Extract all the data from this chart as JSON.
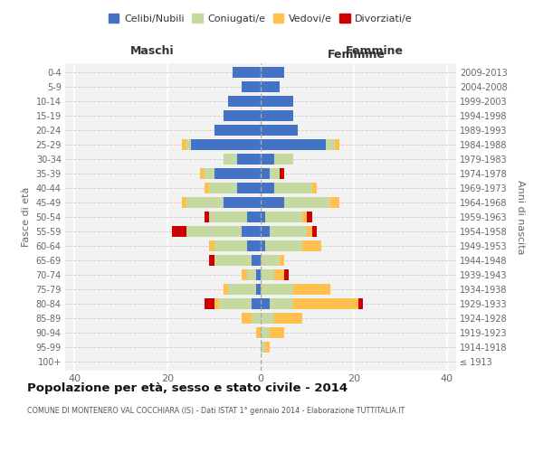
{
  "age_groups": [
    "100+",
    "95-99",
    "90-94",
    "85-89",
    "80-84",
    "75-79",
    "70-74",
    "65-69",
    "60-64",
    "55-59",
    "50-54",
    "45-49",
    "40-44",
    "35-39",
    "30-34",
    "25-29",
    "20-24",
    "15-19",
    "10-14",
    "5-9",
    "0-4"
  ],
  "birth_years": [
    "≤ 1913",
    "1914-1918",
    "1919-1923",
    "1924-1928",
    "1929-1933",
    "1934-1938",
    "1939-1943",
    "1944-1948",
    "1949-1953",
    "1954-1958",
    "1959-1963",
    "1964-1968",
    "1969-1973",
    "1974-1978",
    "1979-1983",
    "1984-1988",
    "1989-1993",
    "1994-1998",
    "1999-2003",
    "2004-2008",
    "2009-2013"
  ],
  "maschi": {
    "celibi": [
      0,
      0,
      0,
      0,
      2,
      1,
      1,
      2,
      3,
      4,
      3,
      8,
      5,
      10,
      5,
      15,
      10,
      8,
      7,
      4,
      6
    ],
    "coniugati": [
      0,
      0,
      0,
      2,
      7,
      6,
      2,
      8,
      7,
      12,
      8,
      8,
      6,
      2,
      3,
      1,
      0,
      0,
      0,
      0,
      0
    ],
    "vedovi": [
      0,
      0,
      1,
      2,
      1,
      1,
      1,
      0,
      1,
      0,
      0,
      1,
      1,
      1,
      0,
      1,
      0,
      0,
      0,
      0,
      0
    ],
    "divorziati": [
      0,
      0,
      0,
      0,
      2,
      0,
      0,
      1,
      0,
      3,
      1,
      0,
      0,
      0,
      0,
      0,
      0,
      0,
      0,
      0,
      0
    ]
  },
  "femmine": {
    "nubili": [
      0,
      0,
      0,
      0,
      2,
      0,
      0,
      0,
      1,
      2,
      1,
      5,
      3,
      2,
      3,
      14,
      8,
      7,
      7,
      4,
      5
    ],
    "coniugate": [
      0,
      1,
      2,
      3,
      5,
      7,
      3,
      4,
      8,
      8,
      8,
      10,
      8,
      2,
      4,
      2,
      0,
      0,
      0,
      0,
      0
    ],
    "vedove": [
      0,
      1,
      3,
      6,
      14,
      8,
      2,
      1,
      4,
      1,
      1,
      2,
      1,
      0,
      0,
      1,
      0,
      0,
      0,
      0,
      0
    ],
    "divorziate": [
      0,
      0,
      0,
      0,
      1,
      0,
      1,
      0,
      0,
      1,
      1,
      0,
      0,
      1,
      0,
      0,
      0,
      0,
      0,
      0,
      0
    ]
  },
  "colors": {
    "celibi": "#4472c4",
    "coniugati": "#c5d9a0",
    "vedovi": "#ffc04d",
    "divorziati": "#cc0000"
  },
  "xlim": 42,
  "title": "Popolazione per età, sesso e stato civile - 2014",
  "subtitle": "COMUNE DI MONTENERO VAL COCCHIARA (IS) - Dati ISTAT 1° gennaio 2014 - Elaborazione TUTTITALIA.IT",
  "ylabel_left": "Fasce di età",
  "ylabel_right": "Anni di nascita",
  "xlabel_maschi": "Maschi",
  "xlabel_femmine": "Femmine",
  "legend_labels": [
    "Celibi/Nubili",
    "Coniugati/e",
    "Vedovi/e",
    "Divorziati/e"
  ],
  "bg_color": "#f2f2f2",
  "grid_color": "#ffffff",
  "hgrid_color": "#cccccc"
}
